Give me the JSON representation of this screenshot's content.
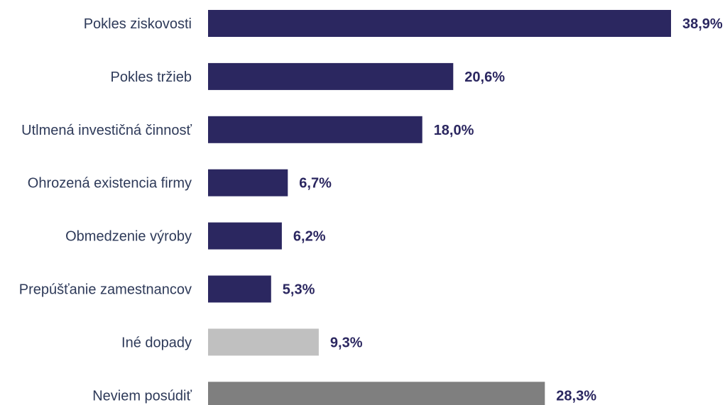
{
  "chart_data": {
    "type": "bar",
    "orientation": "horizontal",
    "categories": [
      "Pokles ziskovosti",
      "Pokles tržieb",
      "Utlmená investičná činnosť",
      "Ohrozená existencia firmy",
      "Obmedzenie výroby",
      "Prepúšťanie zamestnancov",
      "Iné dopady",
      "Neviem posúdiť"
    ],
    "values": [
      38.9,
      20.6,
      18.0,
      6.7,
      6.2,
      5.3,
      9.3,
      28.3
    ],
    "value_labels": [
      "38,9%",
      "20,6%",
      "18,0%",
      "6,7%",
      "6,2%",
      "5,3%",
      "9,3%",
      "28,3%"
    ],
    "bar_colors": [
      "#2b2760",
      "#2b2760",
      "#2b2760",
      "#2b2760",
      "#2b2760",
      "#2b2760",
      "#c0c0c0",
      "#7f7f7f"
    ],
    "xlim": [
      0,
      38.9
    ],
    "title": "",
    "xlabel": "",
    "ylabel": "",
    "grid": false,
    "legend": "none"
  }
}
